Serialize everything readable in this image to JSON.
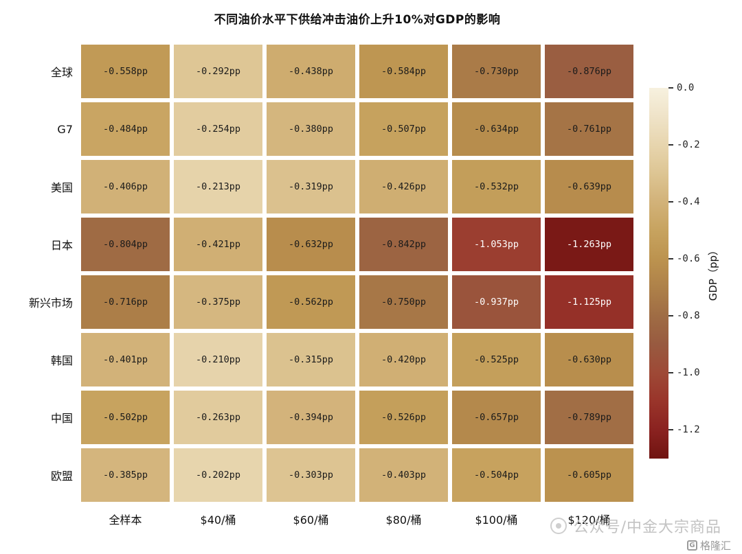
{
  "title": "不同油价水平下供给冲击油价上升10%对GDP的影响",
  "chart_data": {
    "type": "heatmap",
    "title": "不同油价水平下供给冲击油价上升10%对GDP的影响",
    "rows": [
      "全球",
      "G7",
      "美国",
      "日本",
      "新兴市场",
      "韩国",
      "中国",
      "欧盟"
    ],
    "columns": [
      "全样本",
      "$40/桶",
      "$60/桶",
      "$80/桶",
      "$100/桶",
      "$120/桶"
    ],
    "values": [
      [
        -0.558,
        -0.292,
        -0.438,
        -0.584,
        -0.73,
        -0.876
      ],
      [
        -0.484,
        -0.254,
        -0.38,
        -0.507,
        -0.634,
        -0.761
      ],
      [
        -0.406,
        -0.213,
        -0.319,
        -0.426,
        -0.532,
        -0.639
      ],
      [
        -0.804,
        -0.421,
        -0.632,
        -0.842,
        -1.053,
        -1.263
      ],
      [
        -0.716,
        -0.375,
        -0.562,
        -0.75,
        -0.937,
        -1.125
      ],
      [
        -0.401,
        -0.21,
        -0.315,
        -0.42,
        -0.525,
        -0.63
      ],
      [
        -0.502,
        -0.263,
        -0.394,
        -0.526,
        -0.657,
        -0.789
      ],
      [
        -0.385,
        -0.202,
        -0.303,
        -0.403,
        -0.504,
        -0.605
      ]
    ],
    "value_suffix": "pp",
    "value_decimals": 3,
    "colorbar": {
      "label": "GDP（pp）",
      "ticks": [
        0.0,
        -0.2,
        -0.4,
        -0.6,
        -0.8,
        -1.0,
        -1.2
      ],
      "range_abs_max": 1.3
    },
    "colormap": [
      {
        "t": 0.0,
        "color": "#f7f1df"
      },
      {
        "t": 0.1,
        "color": "#efe3c8"
      },
      {
        "t": 0.2,
        "color": "#e7d5ae"
      },
      {
        "t": 0.3,
        "color": "#ddc593"
      },
      {
        "t": 0.4,
        "color": "#d2b279"
      },
      {
        "t": 0.5,
        "color": "#c7a35f"
      },
      {
        "t": 0.6,
        "color": "#bc934f"
      },
      {
        "t": 0.7,
        "color": "#ae8149"
      },
      {
        "t": 0.8,
        "color": "#9f6c44"
      },
      {
        "t": 0.9,
        "color": "#985a40"
      },
      {
        "t": 1.0,
        "color": "#9e4936"
      },
      {
        "t": 1.1,
        "color": "#99342a"
      },
      {
        "t": 1.2,
        "color": "#8a2220"
      },
      {
        "t": 1.3,
        "color": "#701310"
      }
    ],
    "text_colors": {
      "dark": "#1a1a1a",
      "light": "#ffffff",
      "light_threshold": 0.9
    }
  },
  "watermark": {
    "text": "公众号/中金大宗商品"
  },
  "logo": {
    "icon_letter": "G",
    "text": "格隆汇"
  }
}
